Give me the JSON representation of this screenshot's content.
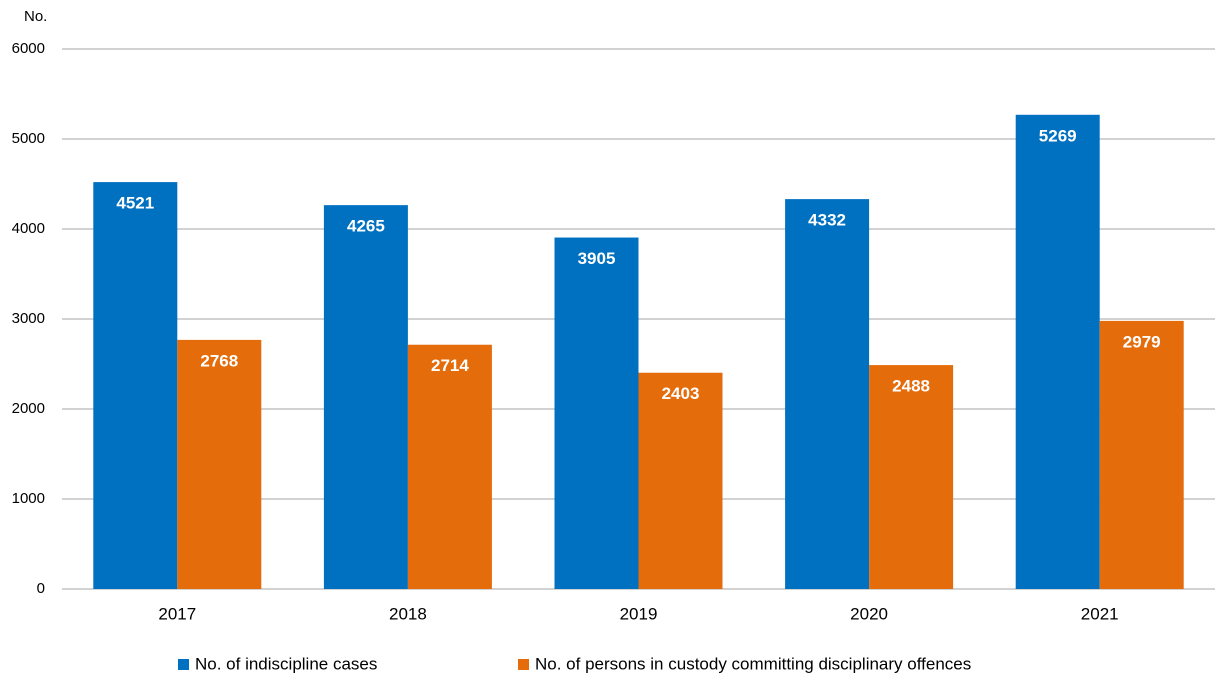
{
  "chart_data": {
    "type": "bar",
    "y_label": "No.",
    "categories": [
      "2017",
      "2018",
      "2019",
      "2020",
      "2021"
    ],
    "series": [
      {
        "name": "No. of indiscipline cases",
        "color": "#0070c0",
        "values": [
          4521,
          4265,
          3905,
          4332,
          5269
        ]
      },
      {
        "name": "No. of persons in custody committing disciplinary offences",
        "color": "#e46c0a",
        "values": [
          2768,
          2714,
          2403,
          2488,
          2979
        ]
      }
    ],
    "ylim": [
      0,
      6000
    ],
    "yticks": [
      0,
      1000,
      2000,
      3000,
      4000,
      5000,
      6000
    ],
    "grid": true,
    "legend": "bottom"
  }
}
